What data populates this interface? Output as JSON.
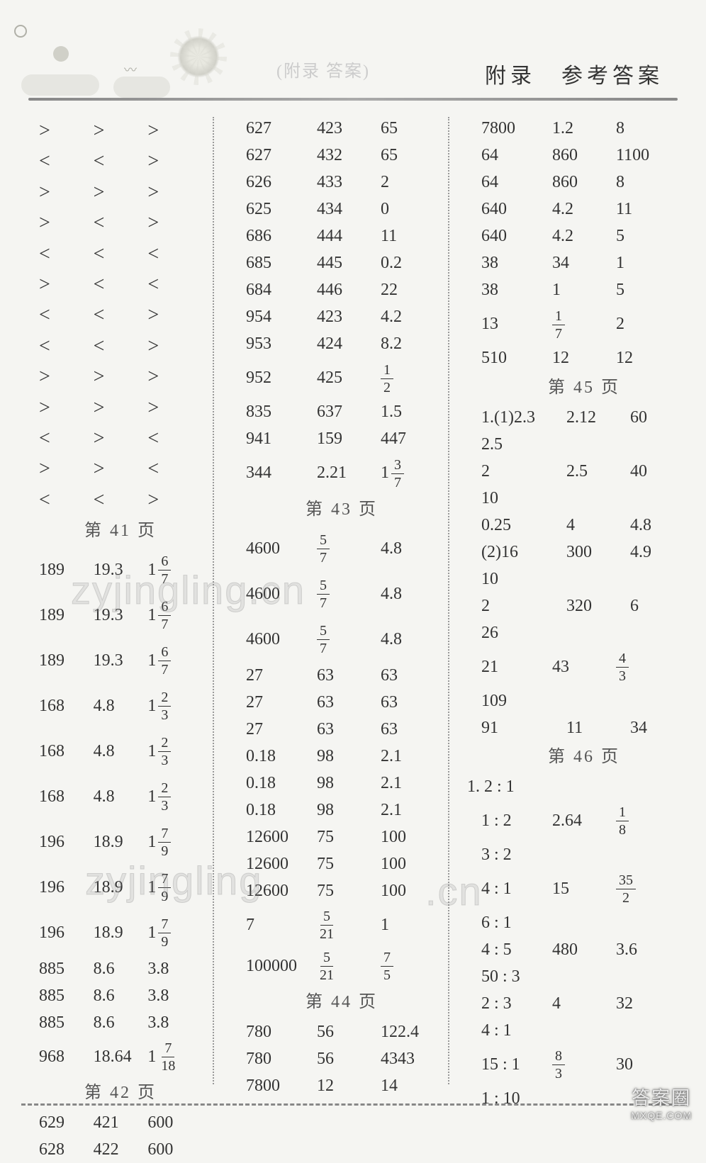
{
  "header": {
    "faint": "(附录 答案)",
    "title": "附录　参考答案"
  },
  "watermarks": {
    "w1": "zyjingling.cn",
    "w2": "zyjingling",
    "w3": ".cn"
  },
  "stamp": {
    "cn": "答案圈",
    "en": "MXQE.COM"
  },
  "pages": {
    "p41": "第 41 页",
    "p42": "第 42 页",
    "p43": "第 43 页",
    "p44": "第 44 页",
    "p45": "第 45 页",
    "p46": "第 46 页"
  },
  "col1": {
    "compRows": [
      [
        ">",
        ">",
        ">"
      ],
      [
        "<",
        "<",
        ">"
      ],
      [
        ">",
        ">",
        ">"
      ],
      [
        ">",
        "<",
        ">"
      ],
      [
        "<",
        "<",
        "<"
      ],
      [
        ">",
        "<",
        "<"
      ],
      [
        "<",
        "<",
        ">"
      ],
      [
        "<",
        "<",
        ">"
      ],
      [
        ">",
        ">",
        ">"
      ],
      [
        ">",
        ">",
        ">"
      ],
      [
        "<",
        ">",
        "<"
      ],
      [
        ">",
        ">",
        "<"
      ],
      [
        "<",
        "<",
        ">"
      ]
    ],
    "numRows1": [
      {
        "a": "189",
        "b": "19.3",
        "mixW": "1",
        "mixN": "6",
        "mixD": "7"
      },
      {
        "a": "189",
        "b": "19.3",
        "mixW": "1",
        "mixN": "6",
        "mixD": "7"
      },
      {
        "a": "189",
        "b": "19.3",
        "mixW": "1",
        "mixN": "6",
        "mixD": "7"
      },
      {
        "a": "168",
        "b": "4.8",
        "mixW": "1",
        "mixN": "2",
        "mixD": "3"
      },
      {
        "a": "168",
        "b": "4.8",
        "mixW": "1",
        "mixN": "2",
        "mixD": "3"
      },
      {
        "a": "168",
        "b": "4.8",
        "mixW": "1",
        "mixN": "2",
        "mixD": "3"
      },
      {
        "a": "196",
        "b": "18.9",
        "mixW": "1",
        "mixN": "7",
        "mixD": "9"
      },
      {
        "a": "196",
        "b": "18.9",
        "mixW": "1",
        "mixN": "7",
        "mixD": "9"
      },
      {
        "a": "196",
        "b": "18.9",
        "mixW": "1",
        "mixN": "7",
        "mixD": "9"
      }
    ],
    "numRows2": [
      [
        "885",
        "8.6",
        "3.8"
      ],
      [
        "885",
        "8.6",
        "3.8"
      ],
      [
        "885",
        "8.6",
        "3.8"
      ]
    ],
    "numRow3": {
      "a": "968",
      "b": "18.64",
      "mixW": "1",
      "mixN": "7",
      "mixD": "18"
    },
    "numRows4": [
      [
        "629",
        "421",
        "600"
      ],
      [
        "628",
        "422",
        "600"
      ]
    ]
  },
  "col2": {
    "topRows": [
      [
        "627",
        "423",
        "65"
      ],
      [
        "627",
        "432",
        "65"
      ],
      [
        "626",
        "433",
        "2"
      ],
      [
        "625",
        "434",
        "0"
      ],
      [
        "686",
        "444",
        "11"
      ],
      [
        "685",
        "445",
        "0.2"
      ],
      [
        "684",
        "446",
        "22"
      ],
      [
        "954",
        "423",
        "4.2"
      ],
      [
        "953",
        "424",
        "8.2"
      ]
    ],
    "fracRow1": {
      "a": "952",
      "b": "425",
      "fn": "1",
      "fd": "2"
    },
    "midRows": [
      [
        "835",
        "637",
        "1.5"
      ],
      [
        "941",
        "159",
        "447"
      ]
    ],
    "fracRow2": {
      "a": "344",
      "b": "2.21",
      "mw": "1",
      "fn": "3",
      "fd": "7"
    },
    "p43rows": [
      {
        "a": "4600",
        "fn": "5",
        "fd": "7",
        "c": "4.8"
      },
      {
        "a": "4600",
        "fn": "5",
        "fd": "7",
        "c": "4.8"
      },
      {
        "a": "4600",
        "fn": "5",
        "fd": "7",
        "c": "4.8"
      }
    ],
    "plainRows1": [
      [
        "27",
        "63",
        "63"
      ],
      [
        "27",
        "63",
        "63"
      ],
      [
        "27",
        "63",
        "63"
      ],
      [
        "0.18",
        "98",
        "2.1"
      ],
      [
        "0.18",
        "98",
        "2.1"
      ],
      [
        "0.18",
        "98",
        "2.1"
      ],
      [
        "12600",
        "75",
        "100"
      ],
      [
        "12600",
        "75",
        "100"
      ],
      [
        "12600",
        "75",
        "100"
      ]
    ],
    "fracRow3": {
      "a": "7",
      "fn": "5",
      "fd": "21",
      "c": "1"
    },
    "fracRow4": {
      "a": "100000",
      "fn1": "5",
      "fd1": "21",
      "fn2": "7",
      "fd2": "5"
    },
    "p44rows": [
      [
        "780",
        "56",
        "122.4"
      ],
      [
        "780",
        "56",
        "4343"
      ],
      [
        "7800",
        "12",
        "14"
      ]
    ]
  },
  "col3": {
    "topRows": [
      [
        "7800",
        "1.2",
        "8"
      ],
      [
        "64",
        "860",
        "1100"
      ],
      [
        "64",
        "860",
        "8"
      ],
      [
        "640",
        "4.2",
        "11"
      ],
      [
        "640",
        "4.2",
        "5"
      ],
      [
        "38",
        "34",
        "1"
      ],
      [
        "38",
        "1",
        "5"
      ]
    ],
    "fracRowA": {
      "a": "13",
      "fn": "1",
      "fd": "7",
      "c": "2"
    },
    "rowB": [
      "510",
      "12",
      "12"
    ],
    "p45rows1": [
      {
        "a": "1.(1)2.3",
        "b": "2.12",
        "c": "60"
      },
      {
        "a": "2.5",
        "b": "",
        "c": ""
      },
      {
        "a": "2",
        "b": "2.5",
        "c": "40"
      },
      {
        "a": "10",
        "b": "",
        "c": ""
      },
      {
        "a": "0.25",
        "b": "4",
        "c": "4.8"
      },
      {
        "a": "(2)16",
        "b": "300",
        "c": "4.9"
      },
      {
        "a": "10",
        "b": "",
        "c": ""
      },
      {
        "a": "2",
        "b": "320",
        "c": "6"
      },
      {
        "a": "26",
        "b": "",
        "c": ""
      }
    ],
    "p45fracRow": {
      "a": "21",
      "b": "43",
      "fn": "4",
      "fd": "3"
    },
    "p45rows2": [
      {
        "a": "109",
        "b": "",
        "c": ""
      },
      {
        "a": "91",
        "b": "11",
        "c": "34"
      }
    ],
    "p46first": "1. 2 : 1",
    "p46rows": [
      {
        "a": "1 : 2",
        "b": "2.64",
        "fn": "1",
        "fd": "8",
        "type": "frac"
      },
      {
        "a": "3 : 2",
        "b": "",
        "c": "",
        "type": "plain"
      },
      {
        "a": "4 : 1",
        "b": "15",
        "fn": "35",
        "fd": "2",
        "type": "frac"
      },
      {
        "a": "6 : 1",
        "b": "",
        "c": "",
        "type": "plain"
      },
      {
        "a": "4 : 5",
        "b": "480",
        "c": "3.6",
        "type": "plain"
      },
      {
        "a": "50 : 3",
        "b": "",
        "c": "",
        "type": "plain"
      },
      {
        "a": "2 : 3",
        "b": "4",
        "c": "32",
        "type": "plain"
      },
      {
        "a": "4 : 1",
        "b": "",
        "c": "",
        "type": "plain"
      }
    ],
    "p46fracRow": {
      "a": "15 : 1",
      "fn": "8",
      "fd": "3",
      "c": "30"
    },
    "p46last": [
      "1 : 10",
      "",
      ""
    ]
  }
}
